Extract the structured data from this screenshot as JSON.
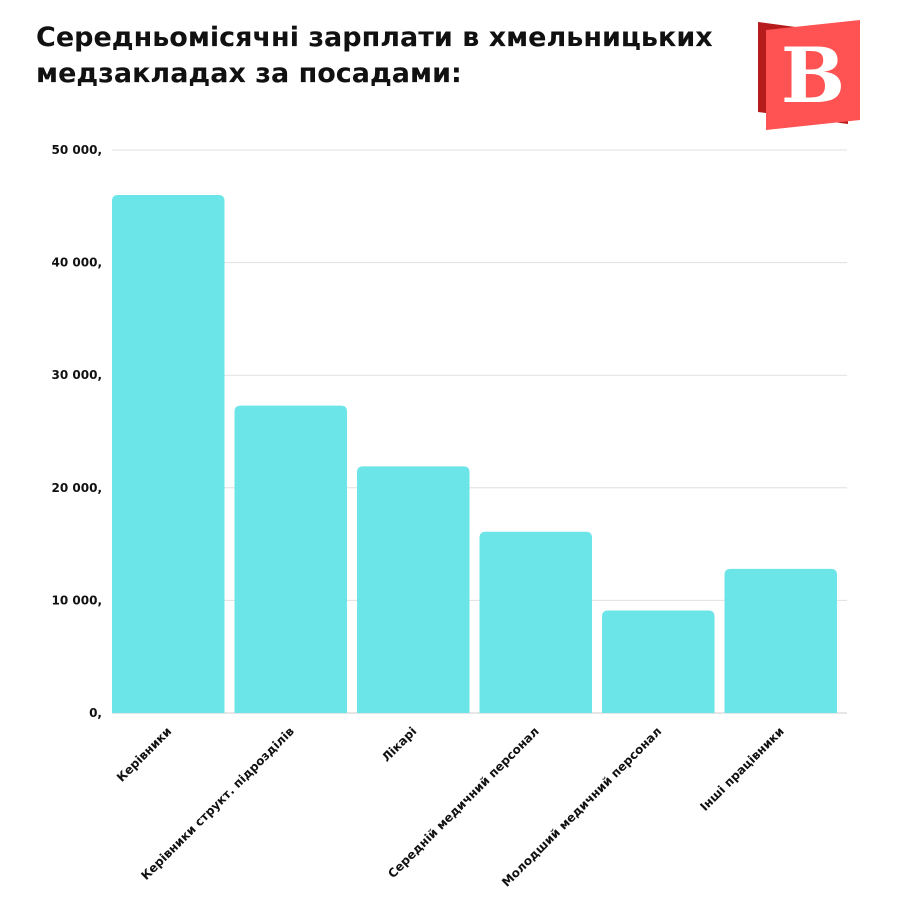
{
  "title_lines": [
    "Середньомісячні зарплати в хмельницьких",
    "медзакладах за посадами:"
  ],
  "logo": {
    "letter": "B",
    "colors": {
      "main": "#ff5252",
      "shadow": "#b71c1c",
      "letter": "#ffffff"
    }
  },
  "chart_data": {
    "type": "bar",
    "title": "Середньомісячні зарплати в хмельницьких медзакладах за посадами:",
    "categories": [
      "Керівники",
      "Керівники структ. підрозділів",
      "Лікарі",
      "Середній медичний персонал",
      "Молодший медичний персонал",
      "Інші працівники"
    ],
    "values": [
      46000,
      27300,
      21900,
      16100,
      9100,
      12800
    ],
    "ylim": [
      0,
      50000
    ],
    "yticks": [
      0,
      10000,
      20000,
      30000,
      40000,
      50000
    ],
    "ytick_labels": [
      "0,",
      "10 000,",
      "20 000,",
      "30 000,",
      "40 000,",
      "50 000,"
    ],
    "grid": true,
    "bar_color": "#6ce5e8",
    "grid_color": "#e0e0e0",
    "axis_color": "#cccccc"
  }
}
